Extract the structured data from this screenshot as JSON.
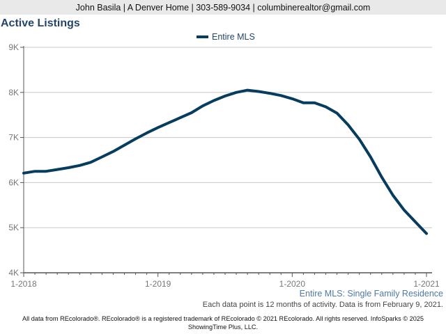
{
  "header": {
    "contact": "John Basila | A Denver Home | 303-589-9034 | columbinerealtor@gmail.com"
  },
  "colors": {
    "line": "#063d5e",
    "title": "#24466a",
    "subtitle": "#4e79a4",
    "grid": "#c8c8c8"
  },
  "chart_data": {
    "type": "line",
    "title": "Active Listings",
    "legend_position": "top-center",
    "grid": true,
    "x_ticks": [
      "1-2018",
      "1-2019",
      "1-2020",
      "1-2021"
    ],
    "y_ticks": [
      "4K",
      "5K",
      "6K",
      "7K",
      "8K",
      "9K"
    ],
    "ylim": [
      4000,
      9000
    ],
    "xlim": [
      "2018-01",
      "2021-01"
    ],
    "series": [
      {
        "name": "Entire MLS",
        "x": [
          "2018-01",
          "2018-02",
          "2018-03",
          "2018-04",
          "2018-05",
          "2018-06",
          "2018-07",
          "2018-08",
          "2018-09",
          "2018-10",
          "2018-11",
          "2018-12",
          "2019-01",
          "2019-02",
          "2019-03",
          "2019-04",
          "2019-05",
          "2019-06",
          "2019-07",
          "2019-08",
          "2019-09",
          "2019-10",
          "2019-11",
          "2019-12",
          "2020-01",
          "2020-02",
          "2020-03",
          "2020-04",
          "2020-05",
          "2020-06",
          "2020-07",
          "2020-08",
          "2020-09",
          "2020-10",
          "2020-11",
          "2020-12",
          "2021-01"
        ],
        "values": [
          6210,
          6250,
          6250,
          6290,
          6330,
          6380,
          6450,
          6570,
          6690,
          6830,
          6970,
          7100,
          7220,
          7330,
          7440,
          7550,
          7700,
          7820,
          7920,
          8000,
          8050,
          8020,
          7980,
          7930,
          7860,
          7770,
          7770,
          7680,
          7540,
          7280,
          6960,
          6570,
          6120,
          5720,
          5390,
          5130,
          4870
        ]
      }
    ],
    "subtitle": "Entire MLS: Single Family Residence",
    "note": "Each data point is 12 months of activity. Data is from February 9, 2021."
  },
  "footer": {
    "line1": "All data from REcolorado®. REcolorado® is a registered trademark of REcolorado © 2021 REcolorado. All rights reserved. InfoSparks © 2025",
    "line2": "ShowingTime Plus, LLC."
  }
}
